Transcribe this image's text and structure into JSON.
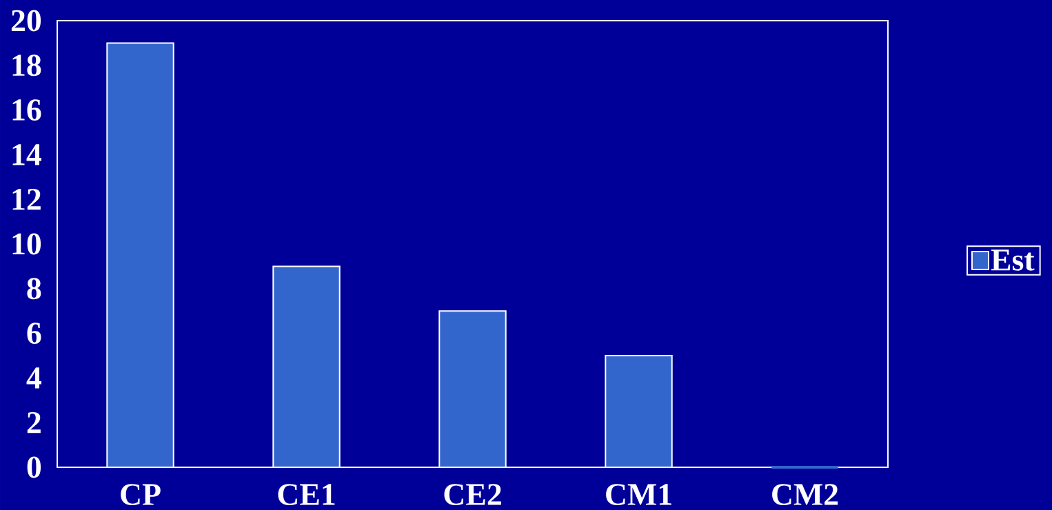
{
  "chart_data": {
    "type": "bar",
    "categories": [
      "CP",
      "CE1",
      "CE2",
      "CM1",
      "CM2"
    ],
    "series": [
      {
        "name": "Est",
        "color": "#3366cc",
        "values": [
          19,
          9,
          7,
          5,
          0
        ]
      }
    ],
    "ylim": [
      0,
      20
    ],
    "yticks": [
      0,
      2,
      4,
      6,
      8,
      10,
      12,
      14,
      16,
      18,
      20
    ],
    "legend": "right"
  }
}
